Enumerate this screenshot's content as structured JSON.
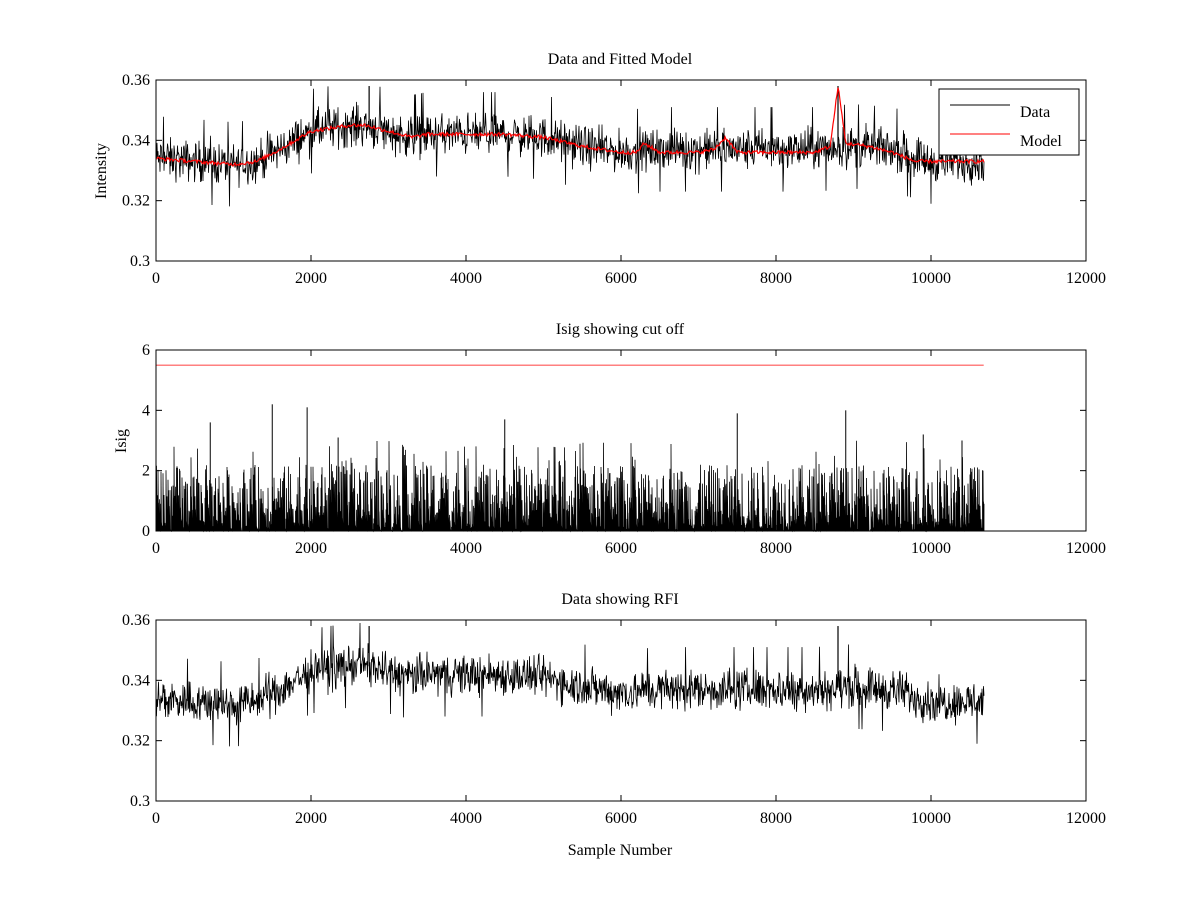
{
  "figure": {
    "xlabel_bottom": "Sample Number"
  },
  "chart_data": [
    {
      "type": "line",
      "title": "Data and Fitted Model",
      "xlabel": "",
      "ylabel": "Intensity",
      "xlim": [
        0,
        12000
      ],
      "ylim": [
        0.3,
        0.36
      ],
      "xticks": [
        0,
        2000,
        4000,
        6000,
        8000,
        10000,
        12000
      ],
      "yticks": [
        0.3,
        0.32,
        0.34,
        0.36
      ],
      "xtick_labels": [
        "0",
        "2000",
        "4000",
        "6000",
        "8000",
        "10000",
        "12000"
      ],
      "ytick_labels": [
        "0.3",
        "0.32",
        "0.34",
        "0.36"
      ],
      "legend": {
        "position": "top-right",
        "entries": [
          "Data",
          "Model"
        ]
      },
      "grid": false,
      "series": [
        {
          "name": "Data",
          "color": "#000000",
          "kind": "noisy",
          "x_range": [
            0,
            10680
          ],
          "baseline_x": [
            0,
            500,
            1000,
            1300,
            1600,
            2000,
            2500,
            2700,
            3000,
            3300,
            3500,
            4000,
            4500,
            5000,
            5500,
            6000,
            6500,
            7000,
            7500,
            8000,
            8500,
            9000,
            9500,
            10000,
            10680
          ],
          "baseline_y": [
            0.334,
            0.333,
            0.332,
            0.333,
            0.337,
            0.343,
            0.345,
            0.345,
            0.343,
            0.341,
            0.342,
            0.342,
            0.342,
            0.341,
            0.338,
            0.336,
            0.337,
            0.337,
            0.337,
            0.337,
            0.337,
            0.338,
            0.337,
            0.333,
            0.333
          ],
          "noise_amplitude": 0.01,
          "spikes": [
            {
              "x": 8800,
              "y": 0.358
            },
            {
              "x": 2750,
              "y": 0.358
            }
          ]
        },
        {
          "name": "Model",
          "color": "#ff0000",
          "kind": "smooth",
          "x": [
            0,
            500,
            1000,
            1300,
            1600,
            2000,
            2500,
            2700,
            3000,
            3300,
            3500,
            4000,
            4500,
            5000,
            5500,
            6000,
            6200,
            6300,
            6500,
            7000,
            7200,
            7350,
            7500,
            8000,
            8500,
            8700,
            8800,
            8900,
            9200,
            9500,
            9800,
            10000,
            10680
          ],
          "y": [
            0.334,
            0.333,
            0.332,
            0.333,
            0.337,
            0.343,
            0.345,
            0.345,
            0.343,
            0.341,
            0.342,
            0.342,
            0.342,
            0.341,
            0.338,
            0.336,
            0.336,
            0.339,
            0.336,
            0.336,
            0.337,
            0.341,
            0.336,
            0.336,
            0.336,
            0.338,
            0.358,
            0.339,
            0.338,
            0.336,
            0.333,
            0.333,
            0.333
          ]
        }
      ]
    },
    {
      "type": "line",
      "title": "Isig showing cut off",
      "xlabel": "",
      "ylabel": "Isig",
      "xlim": [
        0,
        12000
      ],
      "ylim": [
        0,
        6
      ],
      "xticks": [
        0,
        2000,
        4000,
        6000,
        8000,
        10000,
        12000
      ],
      "yticks": [
        0,
        2,
        4,
        6
      ],
      "xtick_labels": [
        "0",
        "2000",
        "4000",
        "6000",
        "8000",
        "10000",
        "12000"
      ],
      "ytick_labels": [
        "0",
        "2",
        "4",
        "6"
      ],
      "grid": false,
      "series": [
        {
          "color": "#000000",
          "kind": "spiky",
          "x_range": [
            0,
            10680
          ],
          "typical_max": 2.2,
          "peak_values": [
            {
              "x": 1500,
              "y": 4.2
            },
            {
              "x": 1950,
              "y": 4.1
            },
            {
              "x": 2350,
              "y": 3.1
            },
            {
              "x": 4500,
              "y": 3.7
            },
            {
              "x": 7500,
              "y": 3.9
            },
            {
              "x": 8900,
              "y": 4.0
            },
            {
              "x": 9900,
              "y": 3.2
            },
            {
              "x": 10400,
              "y": 3.0
            },
            {
              "x": 700,
              "y": 3.6
            }
          ]
        },
        {
          "color": "#ff0000",
          "kind": "hline",
          "x": [
            0,
            10680
          ],
          "y": [
            5.5,
            5.5
          ]
        }
      ]
    },
    {
      "type": "line",
      "title": "Data showing RFI",
      "xlabel": "Sample Number",
      "ylabel": "",
      "xlim": [
        0,
        12000
      ],
      "ylim": [
        0.3,
        0.36
      ],
      "xticks": [
        0,
        2000,
        4000,
        6000,
        8000,
        10000,
        12000
      ],
      "yticks": [
        0.3,
        0.32,
        0.34,
        0.36
      ],
      "xtick_labels": [
        "0",
        "2000",
        "4000",
        "6000",
        "8000",
        "10000",
        "12000"
      ],
      "ytick_labels": [
        "0.3",
        "0.32",
        "0.34",
        "0.36"
      ],
      "grid": false,
      "series": [
        {
          "color": "#000000",
          "kind": "noisy",
          "x_range": [
            0,
            10680
          ],
          "baseline_x": [
            0,
            500,
            1000,
            1300,
            1600,
            2000,
            2500,
            2700,
            3000,
            3300,
            3500,
            4000,
            4500,
            5000,
            5500,
            6000,
            6500,
            7000,
            7500,
            8000,
            8500,
            9000,
            9500,
            10000,
            10680
          ],
          "baseline_y": [
            0.334,
            0.333,
            0.332,
            0.333,
            0.337,
            0.343,
            0.345,
            0.345,
            0.343,
            0.341,
            0.342,
            0.342,
            0.342,
            0.341,
            0.338,
            0.336,
            0.337,
            0.337,
            0.337,
            0.337,
            0.337,
            0.338,
            0.337,
            0.333,
            0.333
          ],
          "noise_amplitude": 0.01,
          "spikes": [
            {
              "x": 8800,
              "y": 0.358
            },
            {
              "x": 2750,
              "y": 0.358
            }
          ]
        }
      ]
    }
  ]
}
